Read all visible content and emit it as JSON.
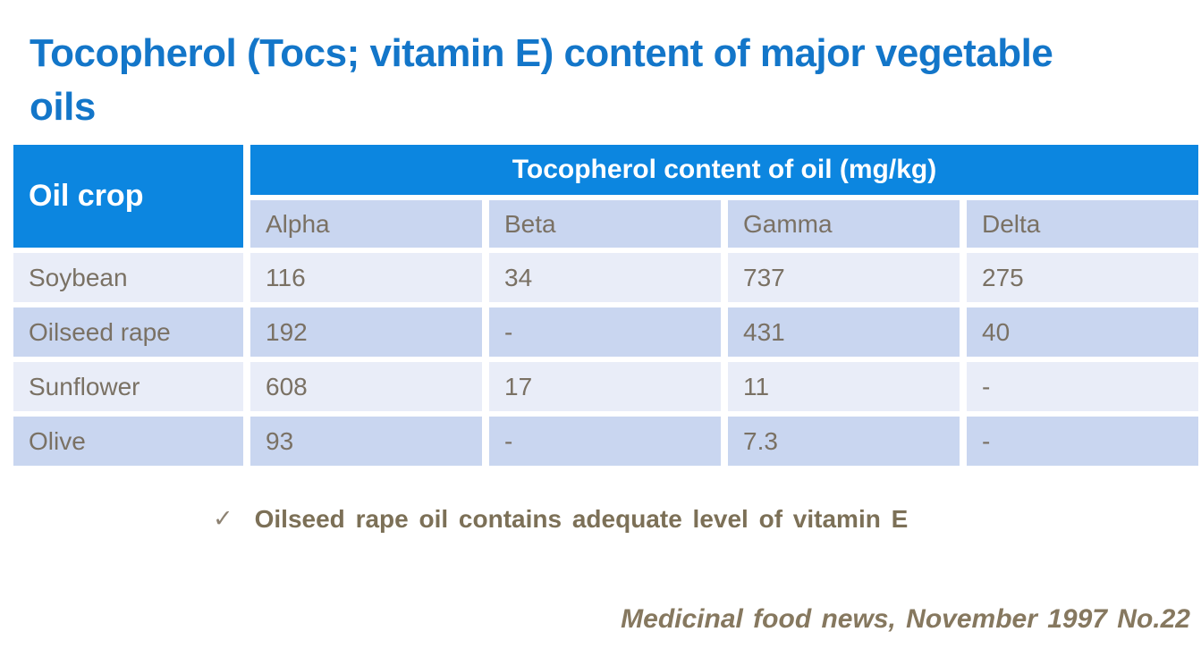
{
  "slide": {
    "title": "Tocopherol (Tocs; vitamin E) content of major vegetable oils",
    "colors": {
      "title_blue": "#1376c9",
      "header_blue": "#0c86e0",
      "row_light": "#e9edf8",
      "row_dark": "#c9d6f0",
      "cell_text": "#7a7164",
      "note_text": "#7c7057",
      "citation_text": "#86785f"
    }
  },
  "table": {
    "corner_header": "Oil crop",
    "group_header": "Tocopherol content of oil (mg/kg)",
    "sub_headers": [
      "Alpha",
      "Beta",
      "Gamma",
      "Delta"
    ],
    "rows": [
      {
        "crop": "Soybean",
        "values": [
          "116",
          "34",
          "737",
          "275"
        ]
      },
      {
        "crop": "Oilseed rape",
        "values": [
          "192",
          "-",
          "431",
          "40"
        ]
      },
      {
        "crop": "Sunflower",
        "values": [
          "608",
          "17",
          "11",
          "-"
        ]
      },
      {
        "crop": "Olive",
        "values": [
          "93",
          "-",
          "7.3",
          "-"
        ]
      }
    ]
  },
  "note": {
    "bullet_icon": "✓",
    "text": "Oilseed rape oil contains adequate level of vitamin E"
  },
  "citation": "Medicinal food news, November 1997 No.22"
}
